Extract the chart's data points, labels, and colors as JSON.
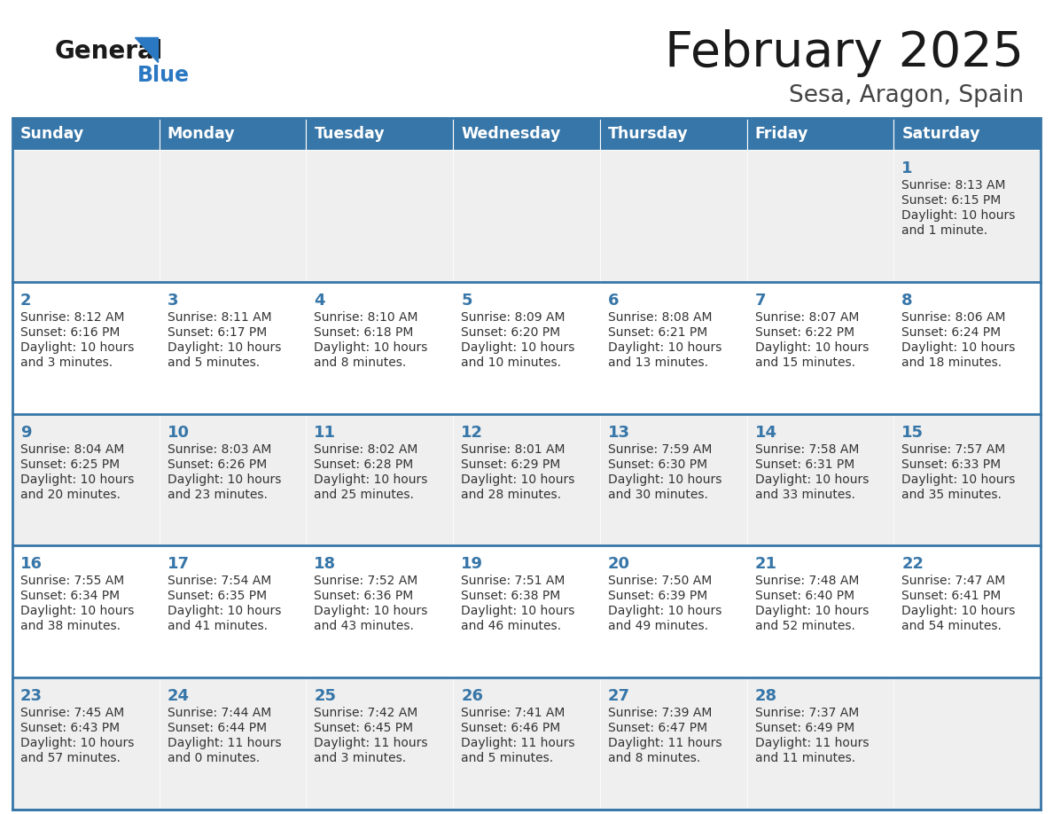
{
  "title": "February 2025",
  "subtitle": "Sesa, Aragon, Spain",
  "days_of_week": [
    "Sunday",
    "Monday",
    "Tuesday",
    "Wednesday",
    "Thursday",
    "Friday",
    "Saturday"
  ],
  "header_bg": "#3776a8",
  "header_text": "#ffffff",
  "cell_bg_odd": "#efefef",
  "cell_bg_even": "#ffffff",
  "day_number_color": "#3776a8",
  "info_text_color": "#333333",
  "border_color": "#3776a8",
  "title_color": "#1a1a1a",
  "subtitle_color": "#444444",
  "logo_general_color": "#1a1a1a",
  "logo_blue_color": "#2b78c2",
  "calendar_data": [
    [
      {
        "day": null,
        "sunrise": null,
        "sunset": null,
        "daylight": null
      },
      {
        "day": null,
        "sunrise": null,
        "sunset": null,
        "daylight": null
      },
      {
        "day": null,
        "sunrise": null,
        "sunset": null,
        "daylight": null
      },
      {
        "day": null,
        "sunrise": null,
        "sunset": null,
        "daylight": null
      },
      {
        "day": null,
        "sunrise": null,
        "sunset": null,
        "daylight": null
      },
      {
        "day": null,
        "sunrise": null,
        "sunset": null,
        "daylight": null
      },
      {
        "day": 1,
        "sunrise": "8:13 AM",
        "sunset": "6:15 PM",
        "daylight_hours": 10,
        "daylight_minutes": 1,
        "minute_word": "minute"
      }
    ],
    [
      {
        "day": 2,
        "sunrise": "8:12 AM",
        "sunset": "6:16 PM",
        "daylight_hours": 10,
        "daylight_minutes": 3,
        "minute_word": "minutes"
      },
      {
        "day": 3,
        "sunrise": "8:11 AM",
        "sunset": "6:17 PM",
        "daylight_hours": 10,
        "daylight_minutes": 5,
        "minute_word": "minutes"
      },
      {
        "day": 4,
        "sunrise": "8:10 AM",
        "sunset": "6:18 PM",
        "daylight_hours": 10,
        "daylight_minutes": 8,
        "minute_word": "minutes"
      },
      {
        "day": 5,
        "sunrise": "8:09 AM",
        "sunset": "6:20 PM",
        "daylight_hours": 10,
        "daylight_minutes": 10,
        "minute_word": "minutes"
      },
      {
        "day": 6,
        "sunrise": "8:08 AM",
        "sunset": "6:21 PM",
        "daylight_hours": 10,
        "daylight_minutes": 13,
        "minute_word": "minutes"
      },
      {
        "day": 7,
        "sunrise": "8:07 AM",
        "sunset": "6:22 PM",
        "daylight_hours": 10,
        "daylight_minutes": 15,
        "minute_word": "minutes"
      },
      {
        "day": 8,
        "sunrise": "8:06 AM",
        "sunset": "6:24 PM",
        "daylight_hours": 10,
        "daylight_minutes": 18,
        "minute_word": "minutes"
      }
    ],
    [
      {
        "day": 9,
        "sunrise": "8:04 AM",
        "sunset": "6:25 PM",
        "daylight_hours": 10,
        "daylight_minutes": 20,
        "minute_word": "minutes"
      },
      {
        "day": 10,
        "sunrise": "8:03 AM",
        "sunset": "6:26 PM",
        "daylight_hours": 10,
        "daylight_minutes": 23,
        "minute_word": "minutes"
      },
      {
        "day": 11,
        "sunrise": "8:02 AM",
        "sunset": "6:28 PM",
        "daylight_hours": 10,
        "daylight_minutes": 25,
        "minute_word": "minutes"
      },
      {
        "day": 12,
        "sunrise": "8:01 AM",
        "sunset": "6:29 PM",
        "daylight_hours": 10,
        "daylight_minutes": 28,
        "minute_word": "minutes"
      },
      {
        "day": 13,
        "sunrise": "7:59 AM",
        "sunset": "6:30 PM",
        "daylight_hours": 10,
        "daylight_minutes": 30,
        "minute_word": "minutes"
      },
      {
        "day": 14,
        "sunrise": "7:58 AM",
        "sunset": "6:31 PM",
        "daylight_hours": 10,
        "daylight_minutes": 33,
        "minute_word": "minutes"
      },
      {
        "day": 15,
        "sunrise": "7:57 AM",
        "sunset": "6:33 PM",
        "daylight_hours": 10,
        "daylight_minutes": 35,
        "minute_word": "minutes"
      }
    ],
    [
      {
        "day": 16,
        "sunrise": "7:55 AM",
        "sunset": "6:34 PM",
        "daylight_hours": 10,
        "daylight_minutes": 38,
        "minute_word": "minutes"
      },
      {
        "day": 17,
        "sunrise": "7:54 AM",
        "sunset": "6:35 PM",
        "daylight_hours": 10,
        "daylight_minutes": 41,
        "minute_word": "minutes"
      },
      {
        "day": 18,
        "sunrise": "7:52 AM",
        "sunset": "6:36 PM",
        "daylight_hours": 10,
        "daylight_minutes": 43,
        "minute_word": "minutes"
      },
      {
        "day": 19,
        "sunrise": "7:51 AM",
        "sunset": "6:38 PM",
        "daylight_hours": 10,
        "daylight_minutes": 46,
        "minute_word": "minutes"
      },
      {
        "day": 20,
        "sunrise": "7:50 AM",
        "sunset": "6:39 PM",
        "daylight_hours": 10,
        "daylight_minutes": 49,
        "minute_word": "minutes"
      },
      {
        "day": 21,
        "sunrise": "7:48 AM",
        "sunset": "6:40 PM",
        "daylight_hours": 10,
        "daylight_minutes": 52,
        "minute_word": "minutes"
      },
      {
        "day": 22,
        "sunrise": "7:47 AM",
        "sunset": "6:41 PM",
        "daylight_hours": 10,
        "daylight_minutes": 54,
        "minute_word": "minutes"
      }
    ],
    [
      {
        "day": 23,
        "sunrise": "7:45 AM",
        "sunset": "6:43 PM",
        "daylight_hours": 10,
        "daylight_minutes": 57,
        "minute_word": "minutes"
      },
      {
        "day": 24,
        "sunrise": "7:44 AM",
        "sunset": "6:44 PM",
        "daylight_hours": 11,
        "daylight_minutes": 0,
        "minute_word": "minutes"
      },
      {
        "day": 25,
        "sunrise": "7:42 AM",
        "sunset": "6:45 PM",
        "daylight_hours": 11,
        "daylight_minutes": 3,
        "minute_word": "minutes"
      },
      {
        "day": 26,
        "sunrise": "7:41 AM",
        "sunset": "6:46 PM",
        "daylight_hours": 11,
        "daylight_minutes": 5,
        "minute_word": "minutes"
      },
      {
        "day": 27,
        "sunrise": "7:39 AM",
        "sunset": "6:47 PM",
        "daylight_hours": 11,
        "daylight_minutes": 8,
        "minute_word": "minutes"
      },
      {
        "day": 28,
        "sunrise": "7:37 AM",
        "sunset": "6:49 PM",
        "daylight_hours": 11,
        "daylight_minutes": 11,
        "minute_word": "minutes"
      },
      {
        "day": null,
        "sunrise": null,
        "sunset": null,
        "daylight_hours": null,
        "daylight_minutes": null,
        "minute_word": null
      }
    ]
  ]
}
